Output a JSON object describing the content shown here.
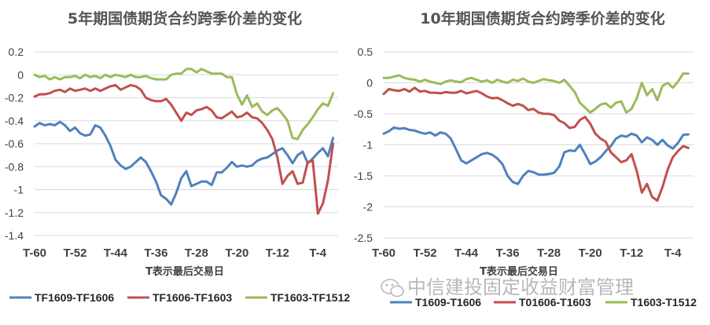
{
  "watermark": {
    "text": "中信建投固定收益财富管理",
    "icon": "wechat-icon"
  },
  "chart_data": [
    {
      "type": "line",
      "title": "5年期国债期货合约跨季价差的变化",
      "xlabel": "T表示最后交易日",
      "ylabel": "",
      "ylim": [
        -1.4,
        0.2
      ],
      "yticks": [
        "0.2",
        "0",
        "-0.2",
        "-0.4",
        "-0.6",
        "-0.8",
        "-1",
        "-1.2",
        "-1.4"
      ],
      "ytick_values": [
        0.2,
        0,
        -0.2,
        -0.4,
        -0.6,
        -0.8,
        -1,
        -1.2,
        -1.4
      ],
      "xlim": [
        -60,
        0
      ],
      "xticks": [
        "T-60",
        "T-52",
        "T-44",
        "T-36",
        "T-28",
        "T-20",
        "T-12",
        "T-4"
      ],
      "xtick_values": [
        -60,
        -52,
        -44,
        -36,
        -28,
        -20,
        -12,
        -4
      ],
      "grid": "horizontal",
      "legend": "bottom",
      "series": [
        {
          "name": "TF1609-TF1606",
          "color": "#4f81bd",
          "x": [
            -60,
            -59,
            -58,
            -57,
            -56,
            -55,
            -54,
            -53,
            -52,
            -51,
            -50,
            -49,
            -48,
            -47,
            -46,
            -45,
            -44,
            -43,
            -42,
            -41,
            -40,
            -39,
            -38,
            -37,
            -36,
            -35,
            -34,
            -33,
            -32,
            -31,
            -30,
            -29,
            -28,
            -27,
            -26,
            -25,
            -24,
            -23,
            -22,
            -21,
            -20,
            -19,
            -18,
            -17,
            -16,
            -15,
            -14,
            -13,
            -12,
            -11,
            -10,
            -9,
            -8,
            -7,
            -6,
            -5,
            -4,
            -3,
            -2,
            -1
          ],
          "values": [
            -0.45,
            -0.42,
            -0.44,
            -0.43,
            -0.44,
            -0.41,
            -0.44,
            -0.49,
            -0.46,
            -0.51,
            -0.53,
            -0.52,
            -0.44,
            -0.46,
            -0.53,
            -0.62,
            -0.74,
            -0.79,
            -0.82,
            -0.8,
            -0.76,
            -0.72,
            -0.76,
            -0.84,
            -0.93,
            -1.05,
            -1.08,
            -1.13,
            -1.03,
            -0.9,
            -0.84,
            -0.97,
            -0.95,
            -0.93,
            -0.93,
            -0.96,
            -0.85,
            -0.85,
            -0.81,
            -0.76,
            -0.8,
            -0.79,
            -0.8,
            -0.79,
            -0.75,
            -0.73,
            -0.72,
            -0.69,
            -0.66,
            -0.64,
            -0.7,
            -0.77,
            -0.7,
            -0.67,
            -0.77,
            -0.73,
            -0.68,
            -0.64,
            -0.71,
            -0.55
          ]
        },
        {
          "name": "TF1606-TF1603",
          "color": "#c0504d",
          "x": [
            -60,
            -59,
            -58,
            -57,
            -56,
            -55,
            -54,
            -53,
            -52,
            -51,
            -50,
            -49,
            -48,
            -47,
            -46,
            -45,
            -44,
            -43,
            -42,
            -41,
            -40,
            -39,
            -38,
            -37,
            -36,
            -35,
            -34,
            -33,
            -32,
            -31,
            -30,
            -29,
            -28,
            -27,
            -26,
            -25,
            -24,
            -23,
            -22,
            -21,
            -20,
            -19,
            -18,
            -17,
            -16,
            -15,
            -14,
            -13,
            -12,
            -11,
            -10,
            -9,
            -8,
            -7,
            -6,
            -5,
            -4,
            -3,
            -2,
            -1
          ],
          "values": [
            -0.19,
            -0.17,
            -0.17,
            -0.16,
            -0.14,
            -0.13,
            -0.15,
            -0.12,
            -0.14,
            -0.13,
            -0.12,
            -0.14,
            -0.12,
            -0.14,
            -0.12,
            -0.1,
            -0.09,
            -0.13,
            -0.11,
            -0.09,
            -0.1,
            -0.13,
            -0.2,
            -0.22,
            -0.23,
            -0.23,
            -0.21,
            -0.26,
            -0.33,
            -0.4,
            -0.33,
            -0.35,
            -0.31,
            -0.3,
            -0.28,
            -0.31,
            -0.37,
            -0.38,
            -0.35,
            -0.32,
            -0.37,
            -0.36,
            -0.33,
            -0.37,
            -0.38,
            -0.42,
            -0.48,
            -0.56,
            -0.72,
            -0.95,
            -0.88,
            -0.84,
            -0.95,
            -0.94,
            -0.76,
            -0.75,
            -1.21,
            -1.12,
            -0.92,
            -0.6
          ]
        },
        {
          "name": "TF1603-TF1512",
          "color": "#9bbb59",
          "x": [
            -60,
            -59,
            -58,
            -57,
            -56,
            -55,
            -54,
            -53,
            -52,
            -51,
            -50,
            -49,
            -48,
            -47,
            -46,
            -45,
            -44,
            -43,
            -42,
            -41,
            -40,
            -39,
            -38,
            -37,
            -36,
            -35,
            -34,
            -33,
            -32,
            -31,
            -30,
            -29,
            -28,
            -27,
            -26,
            -25,
            -24,
            -23,
            -22,
            -21,
            -20,
            -19,
            -18,
            -17,
            -16,
            -15,
            -14,
            -13,
            -12,
            -11,
            -10,
            -9,
            -8,
            -7,
            -6,
            -5,
            -4,
            -3,
            -2,
            -1
          ],
          "values": [
            0.0,
            -0.02,
            -0.01,
            -0.04,
            -0.02,
            -0.04,
            -0.02,
            -0.02,
            -0.01,
            -0.03,
            0.0,
            -0.02,
            -0.01,
            -0.03,
            0.0,
            -0.02,
            0.0,
            -0.01,
            -0.02,
            0.0,
            -0.02,
            -0.02,
            -0.01,
            -0.03,
            -0.04,
            -0.04,
            -0.04,
            0.0,
            0.01,
            0.01,
            0.05,
            0.05,
            0.02,
            0.05,
            0.03,
            0.01,
            0.01,
            0.01,
            -0.02,
            -0.02,
            -0.17,
            -0.26,
            -0.18,
            -0.28,
            -0.25,
            -0.32,
            -0.35,
            -0.31,
            -0.29,
            -0.34,
            -0.4,
            -0.55,
            -0.56,
            -0.48,
            -0.43,
            -0.37,
            -0.3,
            -0.25,
            -0.27,
            -0.16
          ]
        }
      ]
    },
    {
      "type": "line",
      "title": "10年期国债期货合约跨季价差的变化",
      "xlabel": "T表示最后交易日",
      "ylabel": "",
      "ylim": [
        -2.5,
        0.5
      ],
      "yticks": [
        "0.5",
        "0",
        "-0.5",
        "-1",
        "-1.5",
        "-2",
        "-2.5"
      ],
      "ytick_values": [
        0.5,
        0,
        -0.5,
        -1,
        -1.5,
        -2,
        -2.5
      ],
      "xlim": [
        -60,
        0
      ],
      "xticks": [
        "T-60",
        "T-52",
        "T-44",
        "T-36",
        "T-28",
        "T-20",
        "T-12",
        "T-4"
      ],
      "xtick_values": [
        -60,
        -52,
        -44,
        -36,
        -28,
        -20,
        -12,
        -4
      ],
      "grid": "horizontal",
      "legend": "bottom",
      "series": [
        {
          "name": "T1609-T1606",
          "color": "#4f81bd",
          "x": [
            -60,
            -59,
            -58,
            -57,
            -56,
            -55,
            -54,
            -53,
            -52,
            -51,
            -50,
            -49,
            -48,
            -47,
            -46,
            -45,
            -44,
            -43,
            -42,
            -41,
            -40,
            -39,
            -38,
            -37,
            -36,
            -35,
            -34,
            -33,
            -32,
            -31,
            -30,
            -29,
            -28,
            -27,
            -26,
            -25,
            -24,
            -23,
            -22,
            -21,
            -20,
            -19,
            -18,
            -17,
            -16,
            -15,
            -14,
            -13,
            -12,
            -11,
            -10,
            -9,
            -8,
            -7,
            -6,
            -5,
            -4,
            -3,
            -2,
            -1
          ],
          "values": [
            -0.82,
            -0.78,
            -0.72,
            -0.74,
            -0.73,
            -0.76,
            -0.77,
            -0.8,
            -0.82,
            -0.8,
            -0.85,
            -0.8,
            -0.82,
            -0.9,
            -1.07,
            -1.25,
            -1.3,
            -1.25,
            -1.2,
            -1.15,
            -1.13,
            -1.16,
            -1.22,
            -1.31,
            -1.5,
            -1.6,
            -1.63,
            -1.5,
            -1.42,
            -1.44,
            -1.48,
            -1.48,
            -1.47,
            -1.45,
            -1.35,
            -1.12,
            -1.09,
            -1.1,
            -1.0,
            -1.15,
            -1.31,
            -1.27,
            -1.2,
            -1.1,
            -1.02,
            -0.9,
            -0.85,
            -0.87,
            -0.82,
            -0.85,
            -0.96,
            -0.88,
            -0.92,
            -1.0,
            -0.92,
            -1.01,
            -1.06,
            -0.97,
            -0.84,
            -0.83
          ]
        },
        {
          "name": "T01606-T1603",
          "color": "#c0504d",
          "x": [
            -60,
            -59,
            -58,
            -57,
            -56,
            -55,
            -54,
            -53,
            -52,
            -51,
            -50,
            -49,
            -48,
            -47,
            -46,
            -45,
            -44,
            -43,
            -42,
            -41,
            -40,
            -39,
            -38,
            -37,
            -36,
            -35,
            -34,
            -33,
            -32,
            -31,
            -30,
            -29,
            -28,
            -27,
            -26,
            -25,
            -24,
            -23,
            -22,
            -21,
            -20,
            -19,
            -18,
            -17,
            -16,
            -15,
            -14,
            -13,
            -12,
            -11,
            -10,
            -9,
            -8,
            -7,
            -6,
            -5,
            -4,
            -3,
            -2,
            -1
          ],
          "values": [
            -0.18,
            -0.1,
            -0.12,
            -0.13,
            -0.1,
            -0.14,
            -0.08,
            -0.14,
            -0.13,
            -0.16,
            -0.16,
            -0.17,
            -0.15,
            -0.16,
            -0.16,
            -0.13,
            -0.17,
            -0.15,
            -0.13,
            -0.17,
            -0.22,
            -0.25,
            -0.24,
            -0.28,
            -0.33,
            -0.37,
            -0.34,
            -0.37,
            -0.44,
            -0.42,
            -0.48,
            -0.5,
            -0.5,
            -0.52,
            -0.61,
            -0.65,
            -0.73,
            -0.71,
            -0.6,
            -0.55,
            -0.66,
            -0.82,
            -0.9,
            -0.95,
            -1.12,
            -1.2,
            -1.28,
            -1.25,
            -1.15,
            -1.42,
            -1.77,
            -1.63,
            -1.84,
            -1.9,
            -1.68,
            -1.4,
            -1.2,
            -1.1,
            -1.02,
            -1.05
          ]
        },
        {
          "name": "T1603-T1512",
          "color": "#9bbb59",
          "x": [
            -60,
            -59,
            -58,
            -57,
            -56,
            -55,
            -54,
            -53,
            -52,
            -51,
            -50,
            -49,
            -48,
            -47,
            -46,
            -45,
            -44,
            -43,
            -42,
            -41,
            -40,
            -39,
            -38,
            -37,
            -36,
            -35,
            -34,
            -33,
            -32,
            -31,
            -30,
            -29,
            -28,
            -27,
            -26,
            -25,
            -24,
            -23,
            -22,
            -21,
            -20,
            -19,
            -18,
            -17,
            -16,
            -15,
            -14,
            -13,
            -12,
            -11,
            -10,
            -9,
            -8,
            -7,
            -6,
            -5,
            -4,
            -3,
            -2,
            -1
          ],
          "values": [
            0.08,
            0.08,
            0.1,
            0.12,
            0.08,
            0.06,
            0.05,
            0.02,
            0.05,
            0.02,
            0.0,
            -0.02,
            0.02,
            0.04,
            0.02,
            0.01,
            0.06,
            0.08,
            0.05,
            0.02,
            0.04,
            0.0,
            0.05,
            0.02,
            0.0,
            0.05,
            0.03,
            0.07,
            0.02,
            0.0,
            0.03,
            0.06,
            0.04,
            0.03,
            0.0,
            0.05,
            -0.05,
            -0.15,
            -0.32,
            -0.4,
            -0.48,
            -0.42,
            -0.35,
            -0.33,
            -0.4,
            -0.32,
            -0.3,
            -0.48,
            -0.42,
            -0.25,
            0.0,
            -0.2,
            -0.1,
            -0.28,
            -0.05,
            0.0,
            -0.08,
            0.02,
            0.15,
            0.15
          ]
        }
      ]
    }
  ]
}
